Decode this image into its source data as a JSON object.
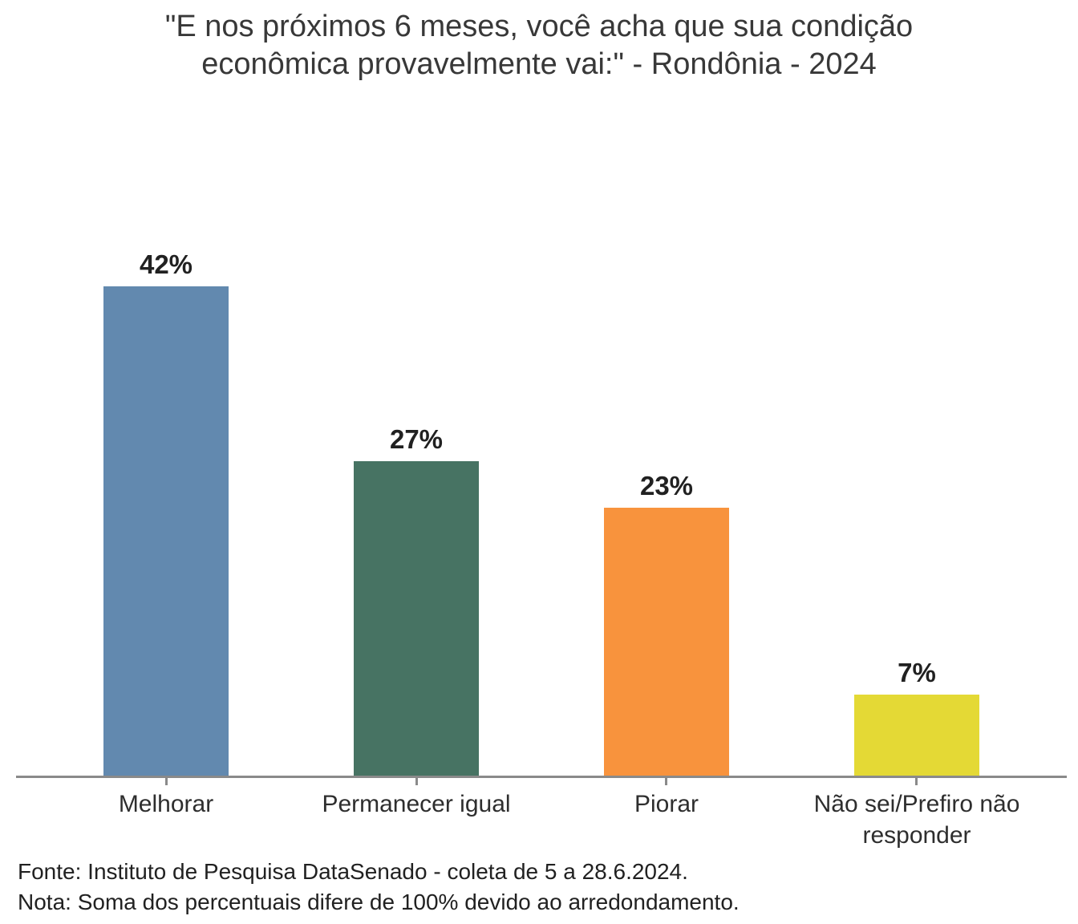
{
  "title": {
    "line1": "\"E nos próximos 6 meses, você acha que sua condição",
    "line2": "econômica provavelmente vai:\" - Rondônia - 2024"
  },
  "footer": {
    "source": "Fonte: Instituto de Pesquisa DataSenado - coleta de 5 a 28.6.2024.",
    "note": "Nota: Soma dos percentuais difere de 100% devido ao arredondamento."
  },
  "chart_data": {
    "type": "bar",
    "title": "\"E nos próximos 6 meses, você acha que sua condição econômica provavelmente vai:\" - Rondônia - 2024",
    "categories": [
      "Melhorar",
      "Permanecer igual",
      "Piorar",
      "Não sei/Prefiro não responder"
    ],
    "values": [
      42,
      27,
      23,
      7
    ],
    "value_labels": [
      "42%",
      "27%",
      "23%",
      "7%"
    ],
    "bar_colors": [
      "#6289AF",
      "#477363",
      "#F8933D",
      "#E4D935"
    ],
    "axis_color": "#8A8A8A",
    "xlabel": "",
    "ylabel": "",
    "ylim": [
      0,
      44
    ],
    "grid": false,
    "legend": false,
    "source": "Fonte: Instituto de Pesquisa DataSenado - coleta de 5 a 28.6.2024.",
    "note": "Nota: Soma dos percentuais difere de 100% devido ao arredondamento."
  }
}
